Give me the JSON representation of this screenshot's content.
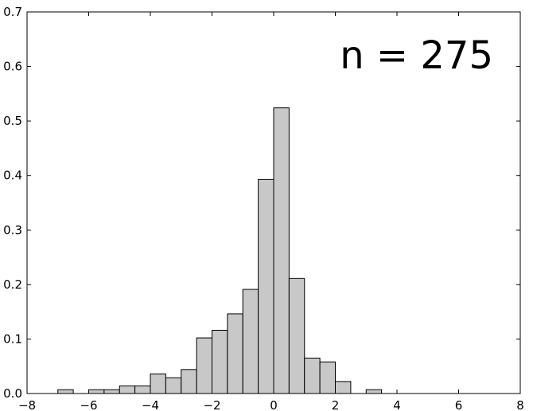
{
  "chart_data": {
    "type": "bar",
    "title": "",
    "xlabel": "",
    "ylabel": "",
    "xlim": [
      -8,
      8
    ],
    "ylim": [
      0,
      0.7
    ],
    "xticks": [
      -8,
      -6,
      -4,
      -2,
      0,
      2,
      4,
      6,
      8
    ],
    "yticks": [
      0.0,
      0.1,
      0.2,
      0.3,
      0.4,
      0.5,
      0.6,
      0.7
    ],
    "xtick_labels": [
      "−8",
      "−6",
      "−4",
      "−2",
      "0",
      "2",
      "4",
      "6",
      "8"
    ],
    "ytick_labels": [
      "0.0",
      "0.1",
      "0.2",
      "0.3",
      "0.4",
      "0.5",
      "0.6",
      "0.7"
    ],
    "grid": false,
    "bar_color": "#c8c8c8",
    "edge_color": "#000000",
    "annotation": "n = 275",
    "bins": [
      {
        "x0": -7.0,
        "x1": -6.5,
        "value": 0.007
      },
      {
        "x0": -6.0,
        "x1": -5.5,
        "value": 0.007
      },
      {
        "x0": -5.5,
        "x1": -5.0,
        "value": 0.007
      },
      {
        "x0": -5.0,
        "x1": -4.5,
        "value": 0.014
      },
      {
        "x0": -4.5,
        "x1": -4.0,
        "value": 0.014
      },
      {
        "x0": -4.0,
        "x1": -3.5,
        "value": 0.036
      },
      {
        "x0": -3.5,
        "x1": -3.0,
        "value": 0.029
      },
      {
        "x0": -3.0,
        "x1": -2.5,
        "value": 0.044
      },
      {
        "x0": -2.5,
        "x1": -2.0,
        "value": 0.102
      },
      {
        "x0": -2.0,
        "x1": -1.5,
        "value": 0.116
      },
      {
        "x0": -1.5,
        "x1": -1.0,
        "value": 0.146
      },
      {
        "x0": -1.0,
        "x1": -0.5,
        "value": 0.191
      },
      {
        "x0": -0.5,
        "x1": 0.0,
        "value": 0.393
      },
      {
        "x0": 0.0,
        "x1": 0.5,
        "value": 0.524
      },
      {
        "x0": 0.5,
        "x1": 1.0,
        "value": 0.211
      },
      {
        "x0": 1.0,
        "x1": 1.5,
        "value": 0.065
      },
      {
        "x0": 1.5,
        "x1": 2.0,
        "value": 0.058
      },
      {
        "x0": 2.0,
        "x1": 2.5,
        "value": 0.022
      },
      {
        "x0": 3.0,
        "x1": 3.5,
        "value": 0.007
      }
    ]
  }
}
